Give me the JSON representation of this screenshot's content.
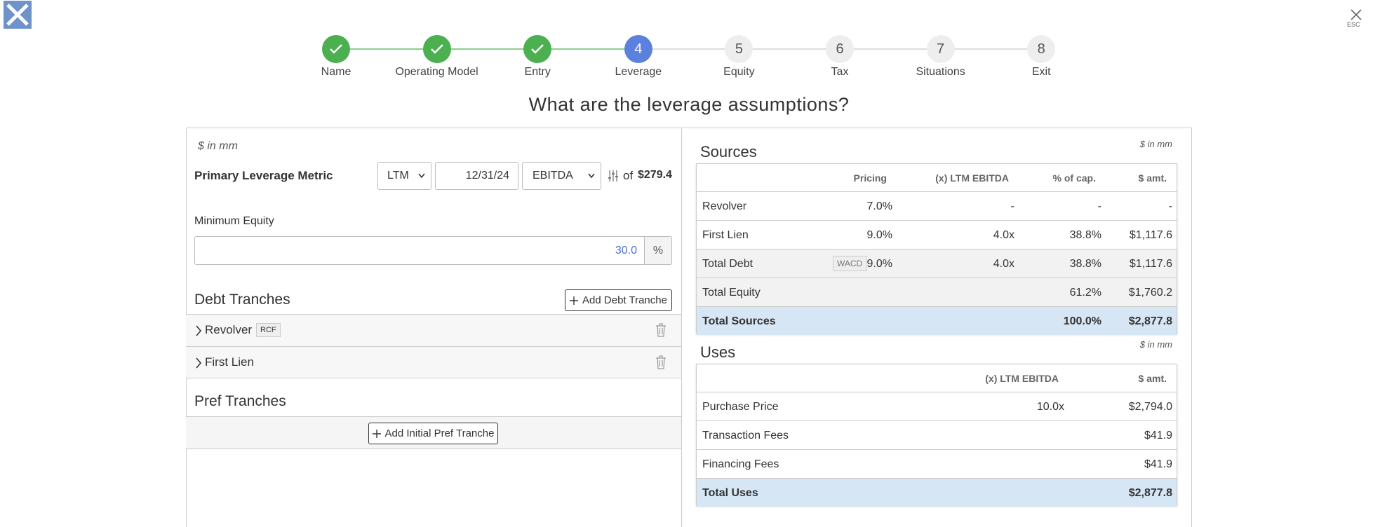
{
  "header": {
    "close_hint": "ESC"
  },
  "steps": [
    {
      "label": "Name",
      "status": "done"
    },
    {
      "label": "Operating Model",
      "status": "done"
    },
    {
      "label": "Entry",
      "status": "done"
    },
    {
      "number": "4",
      "label": "Leverage",
      "status": "active"
    },
    {
      "number": "5",
      "label": "Equity",
      "status": "pending"
    },
    {
      "number": "6",
      "label": "Tax",
      "status": "pending"
    },
    {
      "number": "7",
      "label": "Situations",
      "status": "pending"
    },
    {
      "number": "8",
      "label": "Exit",
      "status": "pending"
    }
  ],
  "question": "What are the leverage assumptions?",
  "left": {
    "units": "$ in mm",
    "metric_label": "Primary Leverage Metric",
    "period": "LTM",
    "date": "12/31/24",
    "metric": "EBITDA",
    "of": "of",
    "metric_value": "$279.4",
    "min_equity_label": "Minimum Equity",
    "min_equity_value": "30.0",
    "min_equity_unit": "%",
    "debt_title": "Debt Tranches",
    "add_debt": "Add Debt Tranche",
    "tranches": [
      {
        "name": "Revolver",
        "tag": "RCF"
      },
      {
        "name": "First Lien"
      }
    ],
    "pref_title": "Pref Tranches",
    "add_pref": "Add Initial Pref Tranche"
  },
  "sources": {
    "title": "Sources",
    "units": "$ in mm",
    "columns": [
      "Pricing",
      "(x) LTM EBITDA",
      "% of cap.",
      "$ amt."
    ],
    "rows": [
      {
        "label": "Revolver",
        "cells": [
          "7.0%",
          "-",
          "-",
          "-"
        ]
      },
      {
        "label": "First Lien",
        "cells": [
          "9.0%",
          "4.0x",
          "38.8%",
          "$1,117.6"
        ]
      },
      {
        "label": "Total Debt",
        "tag": "WACD",
        "cells": [
          "9.0%",
          "4.0x",
          "38.8%",
          "$1,117.6"
        ]
      },
      {
        "label": "Total Equity",
        "cells": [
          null,
          null,
          "61.2%",
          "$1,760.2"
        ]
      },
      {
        "label": "Total Sources",
        "cells": [
          null,
          null,
          "100.0%",
          "$2,877.8"
        ]
      }
    ]
  },
  "uses": {
    "title": "Uses",
    "units": "$ in mm",
    "columns": [
      "(x) LTM EBITDA",
      "$ amt."
    ],
    "rows": [
      {
        "label": "Purchase Price",
        "cells": [
          "10.0x",
          "$2,794.0"
        ]
      },
      {
        "label": "Transaction Fees",
        "cells": [
          null,
          "$41.9"
        ]
      },
      {
        "label": "Financing Fees",
        "cells": [
          null,
          "$41.9"
        ]
      },
      {
        "label": "Total Uses",
        "cells": [
          null,
          "$2,877.8"
        ]
      }
    ]
  }
}
